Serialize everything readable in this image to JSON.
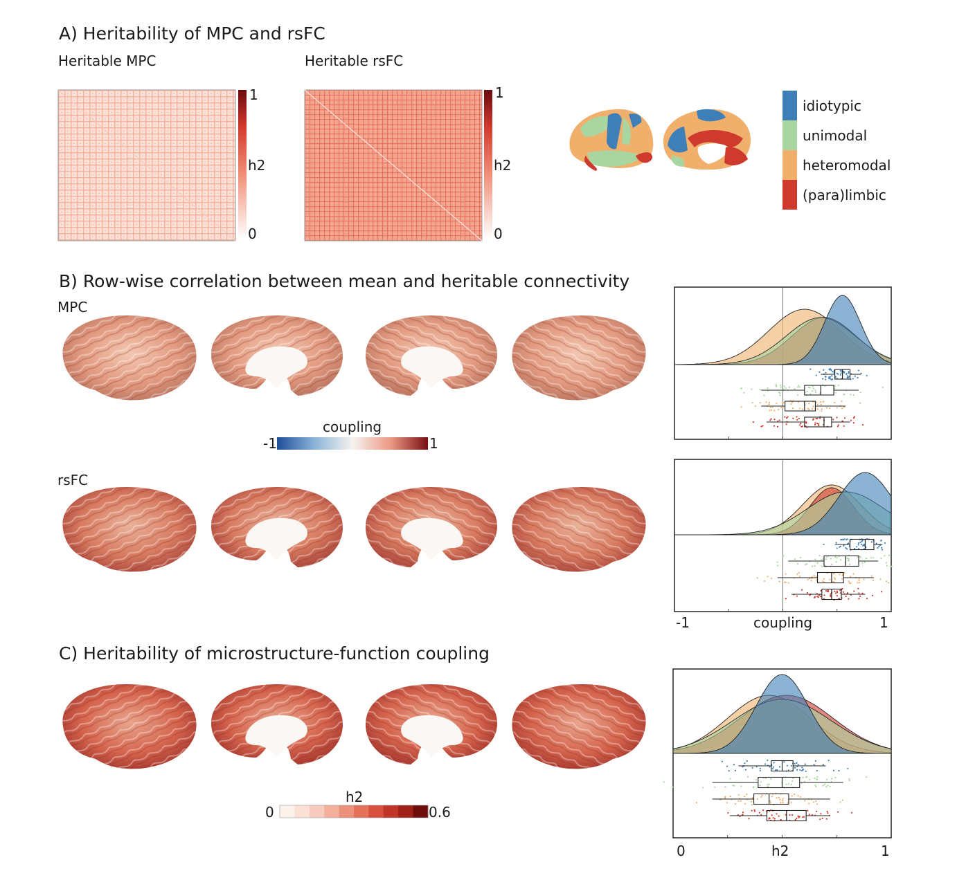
{
  "panel_a": {
    "title": "A) Heritability of MPC and rsFC",
    "mpc_title": "Heritable MPC",
    "rsfc_title": "Heritable rsFC",
    "colorbar": {
      "max_label": "1",
      "mid_label": "h2",
      "min_label": "0"
    },
    "legend": [
      {
        "label": "idiotypic",
        "color": "#3f7fb8"
      },
      {
        "label": "unimodal",
        "color": "#a9d5a0"
      },
      {
        "label": "heteromodal",
        "color": "#f0b06c"
      },
      {
        "label": "(para)limbic",
        "color": "#cf3a2e"
      }
    ]
  },
  "panel_b": {
    "title": "B) Row-wise correlation between mean and heritable connectivity",
    "mpc_label": "MPC",
    "rsfc_label": "rsFC",
    "colorbar": {
      "title": "coupling",
      "min_label": "-1",
      "max_label": "1"
    },
    "axis": {
      "min_label": "-1",
      "label": "coupling",
      "max_label": "1"
    }
  },
  "panel_c": {
    "title": "C) Heritability of microstructure-function coupling",
    "colorbar": {
      "title": "h2",
      "min_label": "0",
      "max_label": "0.6"
    },
    "axis": {
      "min_label": "0",
      "label": "h2",
      "max_label": "1"
    }
  },
  "chart_data": [
    {
      "type": "area",
      "panel": "B-MPC",
      "xlim": [
        -1,
        1
      ],
      "series": [
        {
          "name": "idiotypic",
          "median": 0.55,
          "q1": 0.48,
          "q3": 0.62,
          "whisker": [
            0.35,
            0.72
          ]
        },
        {
          "name": "unimodal",
          "median": 0.35,
          "q1": 0.2,
          "q3": 0.47,
          "whisker": [
            -0.2,
            0.7
          ]
        },
        {
          "name": "heteromodal",
          "median": 0.2,
          "q1": 0.02,
          "q3": 0.3,
          "whisker": [
            -0.2,
            0.58
          ]
        },
        {
          "name": "(para)limbic",
          "median": 0.38,
          "q1": 0.2,
          "q3": 0.45,
          "whisker": [
            -0.15,
            0.62
          ]
        }
      ]
    },
    {
      "type": "area",
      "panel": "B-rsFC",
      "xlim": [
        -1,
        1
      ],
      "series": [
        {
          "name": "idiotypic",
          "median": 0.76,
          "q1": 0.62,
          "q3": 0.84,
          "whisker": [
            0.48,
            0.92
          ]
        },
        {
          "name": "unimodal",
          "median": 0.58,
          "q1": 0.38,
          "q3": 0.7,
          "whisker": [
            0.05,
            0.88
          ]
        },
        {
          "name": "heteromodal",
          "median": 0.45,
          "q1": 0.32,
          "q3": 0.56,
          "whisker": [
            -0.05,
            0.84
          ]
        },
        {
          "name": "(para)limbic",
          "median": 0.45,
          "q1": 0.36,
          "q3": 0.54,
          "whisker": [
            0.08,
            0.76
          ]
        }
      ]
    },
    {
      "type": "area",
      "panel": "C",
      "xlim": [
        0,
        1
      ],
      "series": [
        {
          "name": "idiotypic",
          "median": 0.5,
          "q1": 0.45,
          "q3": 0.55,
          "whisker": [
            0.3,
            0.7
          ]
        },
        {
          "name": "unimodal",
          "median": 0.5,
          "q1": 0.39,
          "q3": 0.58,
          "whisker": [
            0.18,
            0.78
          ]
        },
        {
          "name": "heteromodal",
          "median": 0.44,
          "q1": 0.37,
          "q3": 0.53,
          "whisker": [
            0.18,
            0.72
          ]
        },
        {
          "name": "(para)limbic",
          "median": 0.52,
          "q1": 0.43,
          "q3": 0.61,
          "whisker": [
            0.26,
            0.72
          ]
        }
      ]
    }
  ]
}
